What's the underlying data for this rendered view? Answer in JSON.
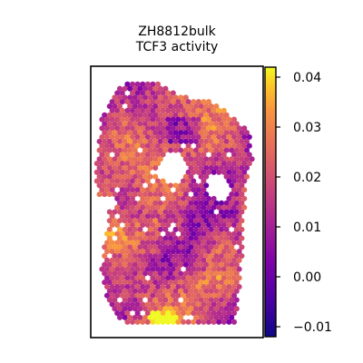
{
  "chart_data": {
    "type": "heatmap",
    "title_lines": [
      "ZH8812bulk",
      "TCF3 activity"
    ],
    "xlabel": "",
    "ylabel": "",
    "grid": false,
    "colormap": "plasma",
    "colorbar": {
      "min": -0.012,
      "max": 0.042,
      "ticks": [
        0.04,
        0.03,
        0.02,
        0.01,
        0.0,
        -0.01
      ],
      "tick_labels": [
        "0.04",
        "0.03",
        "0.02",
        "0.01",
        "0.00",
        "−0.01"
      ]
    },
    "spots": {
      "shape": "hexagonal spatial transcriptomics spots",
      "value_range": [
        -0.012,
        0.042
      ]
    }
  }
}
